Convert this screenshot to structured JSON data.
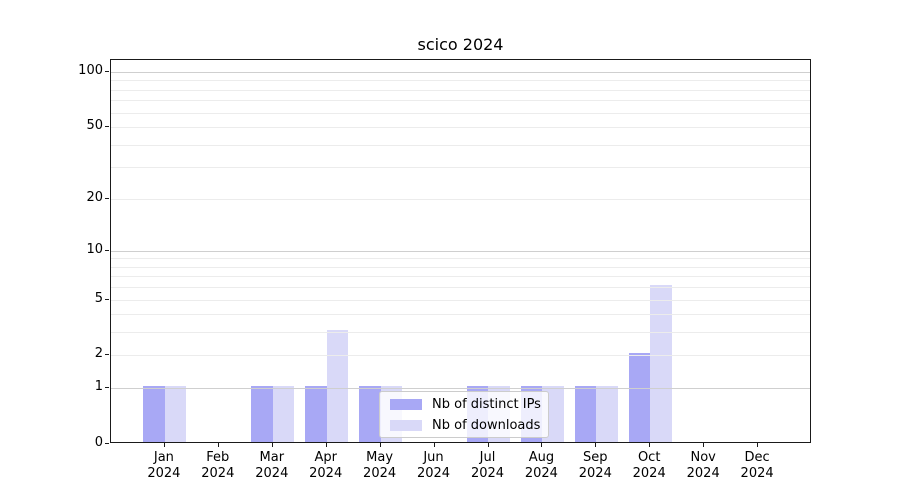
{
  "title": "scico 2024",
  "year": "2024",
  "legend": {
    "items": [
      {
        "label": "Nb of distinct IPs",
        "color": "#a8a8f5"
      },
      {
        "label": "Nb of downloads",
        "color": "#d9d9f8"
      }
    ]
  },
  "y_axis": {
    "tick_labels": [
      "0",
      "1",
      "2",
      "5",
      "10",
      "20",
      "50",
      "100"
    ],
    "tick_values": [
      0,
      1,
      2,
      5,
      10,
      20,
      50,
      100
    ]
  },
  "x_axis": {
    "months": [
      "Jan",
      "Feb",
      "Mar",
      "Apr",
      "May",
      "Jun",
      "Jul",
      "Aug",
      "Sep",
      "Oct",
      "Nov",
      "Dec"
    ],
    "year": "2024"
  },
  "colors": {
    "ips_bar": "#a8a8f5",
    "downloads_bar": "#d9d9f8",
    "minor_grid": "#ececec",
    "major_grid": "#cfcfcf",
    "spine": "#1a1a1a",
    "background": "#ffffff"
  },
  "chart_data": {
    "type": "bar",
    "title": "scico 2024",
    "categories": [
      "Jan 2024",
      "Feb 2024",
      "Mar 2024",
      "Apr 2024",
      "May 2024",
      "Jun 2024",
      "Jul 2024",
      "Aug 2024",
      "Sep 2024",
      "Oct 2024",
      "Nov 2024",
      "Dec 2024"
    ],
    "series": [
      {
        "name": "Nb of distinct IPs",
        "color": "#a8a8f5",
        "values": [
          1,
          0,
          1,
          1,
          1,
          0,
          1,
          1,
          1,
          2,
          0,
          0
        ]
      },
      {
        "name": "Nb of downloads",
        "color": "#d9d9f8",
        "values": [
          1,
          0,
          1,
          3,
          1,
          0,
          1,
          1,
          1,
          6,
          0,
          0
        ]
      }
    ],
    "xlabel": "",
    "ylabel": "",
    "yscale": "log1p",
    "ylim": [
      0,
      116
    ],
    "yticks": [
      0,
      1,
      2,
      5,
      10,
      20,
      50,
      100
    ],
    "major_gridlines": [
      1,
      10,
      100
    ],
    "minor_gridlines": [
      2,
      3,
      4,
      5,
      6,
      7,
      8,
      9,
      20,
      30,
      40,
      50,
      60,
      70,
      80,
      90
    ],
    "grid": "horizontal",
    "grid_above_bars": true,
    "legend_position": "lower center"
  }
}
